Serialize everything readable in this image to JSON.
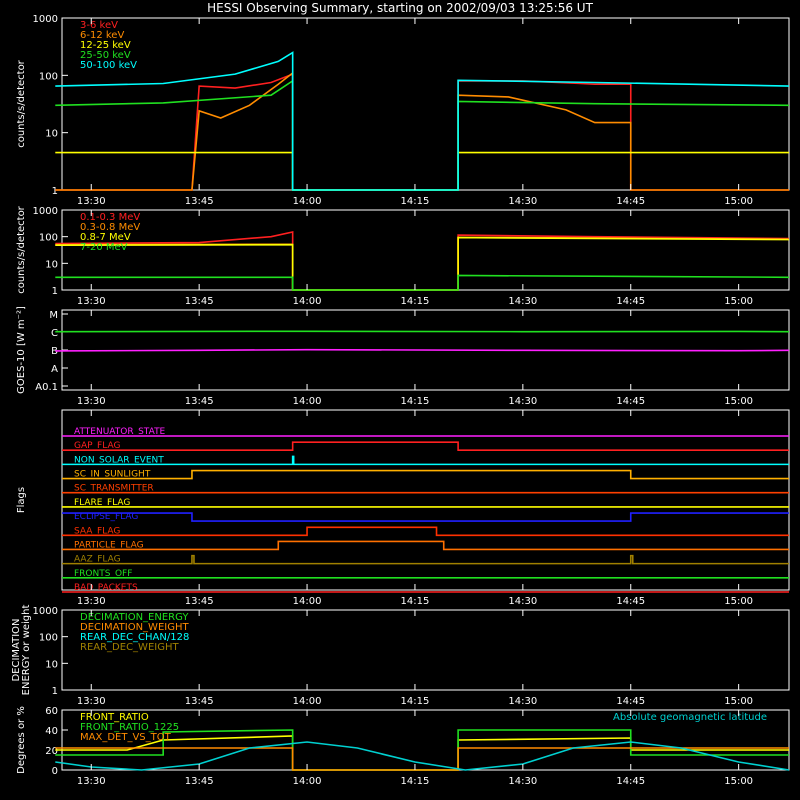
{
  "title": "HESSI Observing Summary, starting on 2002/09/03 13:25:56 UT",
  "time_ticks": [
    "13:30",
    "13:45",
    "14:00",
    "14:15",
    "14:30",
    "14:45",
    "15:00"
  ],
  "chart_data": [
    {
      "id": "p1",
      "type": "line",
      "ylabel": "counts/s/detector",
      "yscale": "log",
      "ylim": [
        1,
        1000
      ],
      "yticks": [
        "1",
        "10",
        "100",
        "1000"
      ],
      "series": [
        {
          "name": "3-6 keV",
          "color": "#ff2020",
          "x": [
            "13:25",
            "13:44",
            "13:45",
            "13:50",
            "13:55",
            "13:58",
            "13:58",
            "14:21",
            "14:21",
            "14:30",
            "14:38",
            "14:40",
            "14:44",
            "14:45",
            "14:45",
            "14:47",
            "15:07"
          ],
          "y": [
            1,
            1,
            65,
            60,
            75,
            105,
            1,
            1,
            80,
            80,
            72,
            70,
            70,
            70,
            1,
            1,
            1
          ]
        },
        {
          "name": "6-12 keV",
          "color": "#ff8c00",
          "x": [
            "13:25",
            "13:44",
            "13:45",
            "13:48",
            "13:52",
            "13:56",
            "13:58",
            "13:58",
            "14:21",
            "14:21",
            "14:28",
            "14:36",
            "14:40",
            "14:45",
            "14:45",
            "15:07"
          ],
          "y": [
            1,
            1,
            24,
            18,
            30,
            70,
            110,
            1,
            1,
            45,
            42,
            25,
            15,
            15,
            1,
            1
          ]
        },
        {
          "name": "12-25 keV",
          "color": "#ffff00",
          "x": [
            "13:25",
            "13:58",
            "13:58",
            "14:21",
            "14:21",
            "15:07"
          ],
          "y": [
            4.5,
            4.5,
            1,
            1,
            4.5,
            4.5
          ]
        },
        {
          "name": "25-50 keV",
          "color": "#20e020",
          "x": [
            "13:25",
            "13:40",
            "13:55",
            "13:58",
            "13:58",
            "14:21",
            "14:21",
            "14:40",
            "15:07"
          ],
          "y": [
            30,
            33,
            45,
            80,
            1,
            1,
            35,
            32,
            30
          ]
        },
        {
          "name": "50-100 keV",
          "color": "#00ffff",
          "x": [
            "13:25",
            "13:40",
            "13:50",
            "13:56",
            "13:58",
            "13:58",
            "14:21",
            "14:21",
            "14:40",
            "15:07"
          ],
          "y": [
            65,
            72,
            105,
            175,
            250,
            1,
            1,
            82,
            75,
            65
          ]
        }
      ]
    },
    {
      "id": "p2",
      "type": "line",
      "ylabel": "counts/s/detector",
      "yscale": "log",
      "ylim": [
        1,
        1000
      ],
      "yticks": [
        "1",
        "10",
        "100",
        "1000"
      ],
      "series": [
        {
          "name": "0.1-0.3 MeV",
          "color": "#ff2020",
          "x": [
            "13:25",
            "13:45",
            "13:55",
            "13:58",
            "13:58",
            "14:21",
            "14:21",
            "14:40",
            "15:07"
          ],
          "y": [
            55,
            60,
            100,
            150,
            1,
            1,
            115,
            100,
            85
          ]
        },
        {
          "name": "0.3-0.8 MeV",
          "color": "#ff8c00",
          "x": [
            "13:25",
            "13:58",
            "13:58",
            "14:21",
            "14:21",
            "15:07"
          ],
          "y": [
            50,
            52,
            1,
            1,
            95,
            80
          ]
        },
        {
          "name": "0.8-7 MeV",
          "color": "#ffff00",
          "x": [
            "13:25",
            "13:58",
            "13:58",
            "14:21",
            "14:21",
            "15:07"
          ],
          "y": [
            48,
            50,
            1,
            1,
            92,
            78
          ]
        },
        {
          "name": "7-20 MeV",
          "color": "#20e020",
          "x": [
            "13:25",
            "13:58",
            "13:58",
            "14:21",
            "14:21",
            "15:07"
          ],
          "y": [
            3,
            3,
            1,
            1,
            3.5,
            3
          ]
        }
      ]
    },
    {
      "id": "p3",
      "type": "line",
      "ylabel": "GOES-10 [W m⁻²]",
      "ylabels": [
        "A0.1",
        "A",
        "B",
        "C",
        "M"
      ],
      "series": [
        {
          "name": "GOES long",
          "color": "#20e020",
          "x": [
            "13:25",
            "14:00",
            "14:30",
            "15:00",
            "15:07"
          ],
          "y": [
            3.02,
            3.04,
            3.02,
            3.03,
            3.02
          ]
        },
        {
          "name": "GOES short",
          "color": "#ff20ff",
          "x": [
            "13:25",
            "13:45",
            "14:00",
            "14:30",
            "15:00",
            "15:07"
          ],
          "y": [
            1.95,
            1.98,
            2.02,
            1.98,
            1.96,
            1.98
          ]
        }
      ]
    },
    {
      "id": "p4",
      "type": "line",
      "ylabel": "Flags",
      "flags": [
        {
          "name": "ATTENUATOR_STATE",
          "color": "#ff20ff",
          "x": [],
          "y": []
        },
        {
          "name": "GAP_FLAG",
          "color": "#ff2020",
          "x": [
            "13:58",
            "14:21"
          ],
          "y": []
        },
        {
          "name": "NON_SOLAR_EVENT",
          "color": "#00ffff",
          "x": [
            "13:58",
            "13:58"
          ],
          "y": []
        },
        {
          "name": "SC_IN_SUNLIGHT",
          "color": "#ffb000",
          "x": [
            "13:44",
            "14:45"
          ],
          "y": []
        },
        {
          "name": "SC_TRANSMITTER",
          "color": "#ff4000",
          "x": [],
          "y": []
        },
        {
          "name": "FLARE_FLAG",
          "color": "#ffff00",
          "x": [],
          "y": []
        },
        {
          "name": "ECLIPSE_FLAG",
          "color": "#2020ff",
          "x": [
            "13:44",
            "14:45"
          ],
          "y": []
        },
        {
          "name": "SAA_FLAG",
          "color": "#ff3000",
          "x": [
            "14:00",
            "14:18"
          ],
          "y": []
        },
        {
          "name": "PARTICLE_FLAG",
          "color": "#ff7000",
          "x": [
            "13:56",
            "14:19"
          ],
          "y": []
        },
        {
          "name": "AAZ_FLAG",
          "color": "#a08000",
          "x": [
            "13:44",
            "13:44",
            "14:45",
            "14:45"
          ],
          "y": []
        },
        {
          "name": "FRONTS_OFF",
          "color": "#20e020",
          "x": [],
          "y": []
        },
        {
          "name": "BAD_PACKETS",
          "color": "#ff2020",
          "x": [],
          "y": []
        }
      ]
    },
    {
      "id": "p5",
      "type": "line",
      "ylabel": "DECIMATION ENERGY or weight",
      "yscale": "log",
      "ylim": [
        1,
        1000
      ],
      "yticks": [
        "1",
        "10",
        "100",
        "1000"
      ],
      "series": [
        {
          "name": "DECIMATION_ENERGY",
          "color": "#20e020",
          "x": [],
          "y": []
        },
        {
          "name": "DECIMATION_WEIGHT",
          "color": "#ff8c00",
          "x": [],
          "y": []
        },
        {
          "name": "REAR_DEC_CHAN/128",
          "color": "#00ffff",
          "x": [],
          "y": []
        },
        {
          "name": "REAR_DEC_WEIGHT",
          "color": "#a08000",
          "x": [],
          "y": []
        }
      ]
    },
    {
      "id": "p6",
      "type": "line",
      "ylabel": "Degrees or %",
      "ylim": [
        0,
        60
      ],
      "yticks": [
        "0",
        "20",
        "40",
        "60"
      ],
      "annotation": "Absolute geomagnetic latitude",
      "series": [
        {
          "name": "FRONT_RATIO",
          "color": "#ffff00",
          "x": [
            "13:25",
            "13:35",
            "13:40",
            "13:58",
            "13:58",
            "14:21",
            "14:21",
            "14:45",
            "14:45",
            "15:07"
          ],
          "y": [
            20,
            20,
            30,
            34,
            0,
            0,
            30,
            32,
            20,
            20
          ]
        },
        {
          "name": "FRONT_RATIO_1225",
          "color": "#20e020",
          "x": [
            "13:25",
            "13:40",
            "13:40",
            "13:58",
            "13:58",
            "14:21",
            "14:21",
            "14:45",
            "14:45",
            "15:07"
          ],
          "y": [
            15,
            15,
            38,
            40,
            0,
            0,
            40,
            40,
            15,
            15
          ]
        },
        {
          "name": "MAX_DET_VS_TOT",
          "color": "#ff8c00",
          "x": [
            "13:25",
            "13:58",
            "13:58",
            "14:21",
            "14:21",
            "15:07"
          ],
          "y": [
            22,
            22,
            0,
            0,
            22,
            22
          ]
        },
        {
          "name": "Absolute geomagnetic latitude",
          "color": "#00d0d0",
          "x": [
            "13:25",
            "13:30",
            "13:37",
            "13:45",
            "13:52",
            "14:00",
            "14:07",
            "14:15",
            "14:22",
            "14:30",
            "14:37",
            "14:45",
            "14:52",
            "15:00",
            "15:07"
          ],
          "y": [
            8,
            3,
            0,
            6,
            22,
            28,
            22,
            8,
            0,
            6,
            22,
            28,
            22,
            8,
            0
          ]
        }
      ]
    }
  ]
}
